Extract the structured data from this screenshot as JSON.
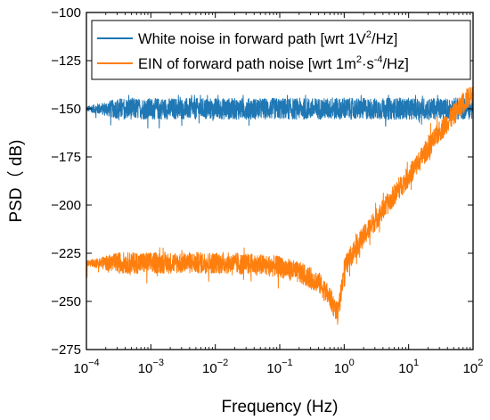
{
  "chart_data": {
    "type": "line",
    "title": "",
    "xlabel": "Frequency (Hz)",
    "ylabel": "PSD（ dB)",
    "xscale": "log",
    "xlim": [
      0.0001,
      100
    ],
    "ylim": [
      -275,
      -100
    ],
    "x_ticks": [
      {
        "value": 0.0001,
        "base": "10",
        "exp": "−4"
      },
      {
        "value": 0.001,
        "base": "10",
        "exp": "−3"
      },
      {
        "value": 0.01,
        "base": "10",
        "exp": "−2"
      },
      {
        "value": 0.1,
        "base": "10",
        "exp": "−1"
      },
      {
        "value": 1,
        "base": "10",
        "exp": "0"
      },
      {
        "value": 10,
        "base": "10",
        "exp": "1"
      },
      {
        "value": 100,
        "base": "10",
        "exp": "2"
      }
    ],
    "y_ticks": [
      {
        "value": -100,
        "label": "−100"
      },
      {
        "value": -125,
        "label": "−125"
      },
      {
        "value": -150,
        "label": "−150"
      },
      {
        "value": -175,
        "label": "−175"
      },
      {
        "value": -200,
        "label": "−200"
      },
      {
        "value": -225,
        "label": "−225"
      },
      {
        "value": -250,
        "label": "−250"
      },
      {
        "value": -275,
        "label": "−275"
      }
    ],
    "grid": false,
    "legend_position": "top-right",
    "series": [
      {
        "name": "White noise in forward path [wrt 1V²/Hz]",
        "legend_parts": [
          {
            "text": "White noise in forward path [wrt 1V"
          },
          {
            "text": "2",
            "sup": true
          },
          {
            "text": "/Hz]"
          }
        ],
        "color": "#1f77b4",
        "x": [
          0.0001,
          0.0002,
          0.0005,
          0.001,
          0.01,
          0.1,
          1,
          10,
          100
        ],
        "y": [
          -150,
          -150,
          -150,
          -150,
          -150,
          -150,
          -150,
          -150,
          -150
        ],
        "noise_range": [
          -160,
          -143
        ]
      },
      {
        "name": "EIN of forward path noise [wrt 1m²·s⁻⁴/Hz]",
        "legend_parts": [
          {
            "text": "EIN of forward path noise [wrt 1m"
          },
          {
            "text": "2",
            "sup": true
          },
          {
            "text": "·s"
          },
          {
            "text": "-4",
            "sup": true
          },
          {
            "text": "/Hz]"
          }
        ],
        "color": "#ff7f0e",
        "x": [
          0.0001,
          0.0002,
          0.0005,
          0.001,
          0.01,
          0.05,
          0.1,
          0.2,
          0.4,
          0.6,
          0.8,
          1,
          1.5,
          3,
          10,
          30,
          100
        ],
        "y": [
          -230,
          -230,
          -230,
          -230,
          -230,
          -231,
          -232,
          -235,
          -240,
          -248,
          -257,
          -233,
          -222,
          -208,
          -185,
          -162,
          -141
        ],
        "noise_range": [
          -262,
          -139
        ]
      }
    ]
  }
}
